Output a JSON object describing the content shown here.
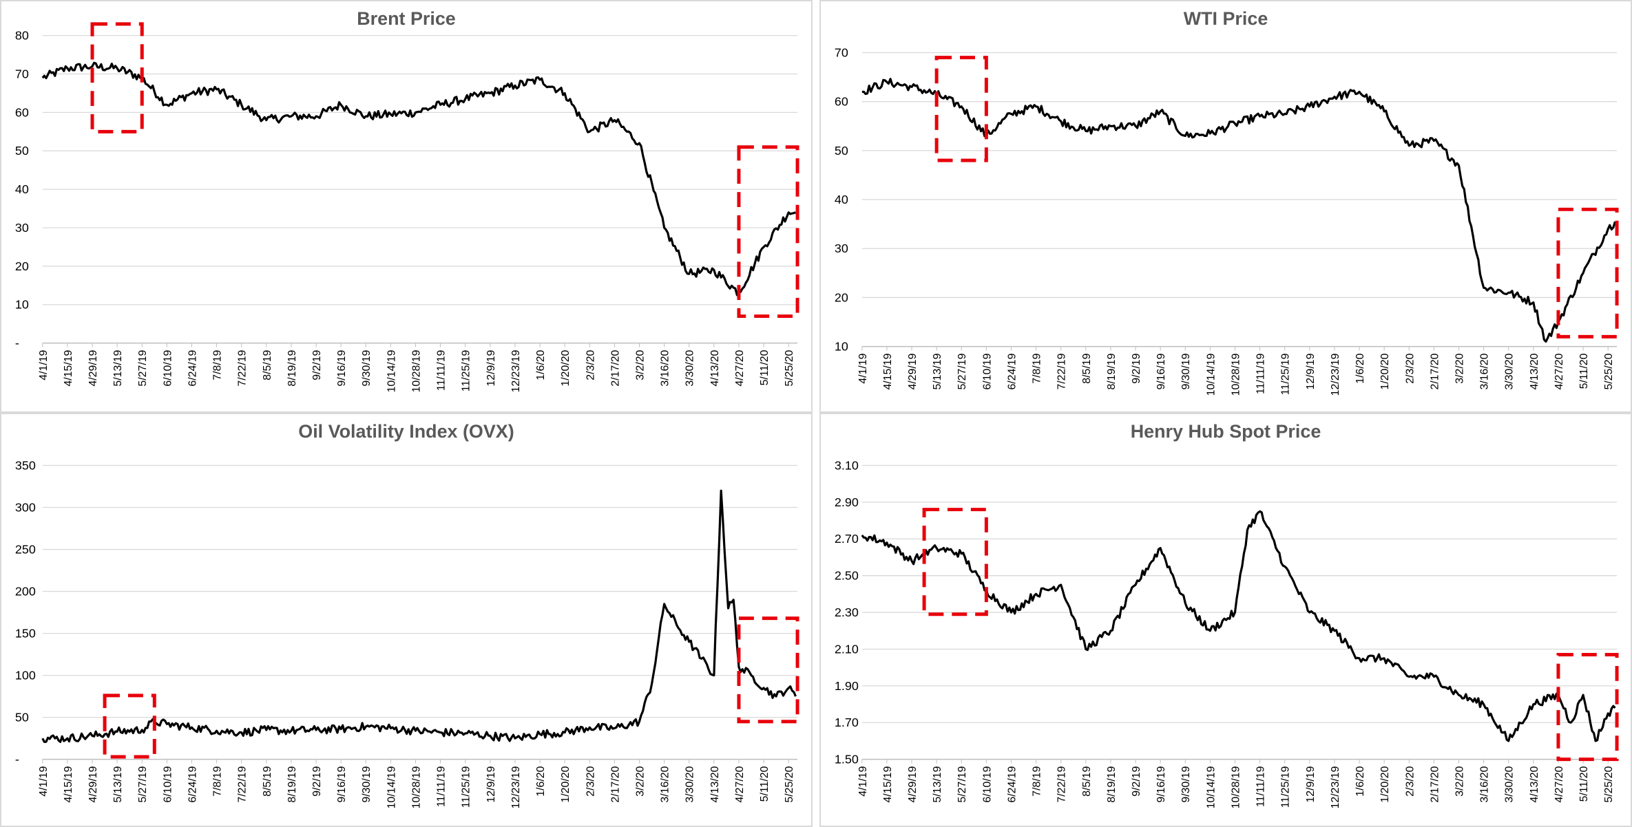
{
  "chart_data": [
    {
      "type": "line",
      "title": "Brent Price",
      "x_ticks": [
        "4/1/19",
        "4/15/19",
        "4/29/19",
        "5/13/19",
        "5/27/19",
        "6/10/19",
        "6/24/19",
        "7/8/19",
        "7/22/19",
        "8/5/19",
        "8/19/19",
        "9/2/19",
        "9/16/19",
        "9/30/19",
        "10/14/19",
        "10/28/19",
        "11/11/19",
        "11/25/19",
        "12/9/19",
        "12/23/19",
        "1/6/20",
        "1/20/20",
        "2/3/20",
        "2/17/20",
        "3/2/20",
        "3/16/20",
        "3/30/20",
        "4/13/20",
        "4/27/20",
        "5/11/20",
        "5/25/20"
      ],
      "y_ticks": [
        "-",
        "10",
        "20",
        "30",
        "40",
        "50",
        "60",
        "70",
        "80"
      ],
      "ylim": [
        0,
        80
      ],
      "grid": true,
      "highlight_boxes": [
        {
          "x_range": [
            "4/29/19",
            "5/27/19"
          ],
          "y_range": [
            55,
            83
          ]
        },
        {
          "x_range": [
            "4/27/20",
            "5/30/20"
          ],
          "y_range": [
            7,
            51
          ]
        }
      ],
      "series": [
        {
          "x": [
            "2019-04-01",
            "2019-04-15",
            "2019-04-29",
            "2019-05-13",
            "2019-05-27",
            "2019-06-10",
            "2019-06-24",
            "2019-07-08",
            "2019-07-22",
            "2019-08-05",
            "2019-08-19",
            "2019-09-02",
            "2019-09-16",
            "2019-09-30",
            "2019-10-14",
            "2019-10-28",
            "2019-11-11",
            "2019-11-25",
            "2019-12-09",
            "2019-12-23",
            "2020-01-06",
            "2020-01-20",
            "2020-02-03",
            "2020-02-17",
            "2020-03-02",
            "2020-03-16",
            "2020-03-30",
            "2020-04-13",
            "2020-04-27",
            "2020-05-11",
            "2020-05-25",
            "2020-05-29"
          ],
          "values": [
            69,
            71.5,
            72,
            71.5,
            69,
            62,
            65,
            66,
            62,
            58,
            59,
            59,
            62,
            59,
            59.5,
            60,
            62,
            63.5,
            65,
            67,
            68.5,
            65,
            55,
            58,
            52,
            30,
            18,
            19,
            13,
            25,
            34,
            34
          ]
        }
      ]
    },
    {
      "type": "line",
      "title": "WTI Price",
      "x_ticks": [
        "4/1/19",
        "4/15/19",
        "4/29/19",
        "5/13/19",
        "5/27/19",
        "6/10/19",
        "6/24/19",
        "7/8/19",
        "7/22/19",
        "8/5/19",
        "8/19/19",
        "9/2/19",
        "9/16/19",
        "9/30/19",
        "10/14/19",
        "10/28/19",
        "11/11/19",
        "11/25/19",
        "12/9/19",
        "12/23/19",
        "1/6/20",
        "1/20/20",
        "2/3/20",
        "2/17/20",
        "3/2/20",
        "3/16/20",
        "3/30/20",
        "4/13/20",
        "4/27/20",
        "5/11/20",
        "5/25/20"
      ],
      "y_ticks": [
        "10",
        "20",
        "30",
        "40",
        "50",
        "60",
        "70"
      ],
      "ylim": [
        10,
        70
      ],
      "grid": true,
      "highlight_boxes": [
        {
          "x_range": [
            "5/13/19",
            "6/10/19"
          ],
          "y_range": [
            48,
            69
          ]
        },
        {
          "x_range": [
            "4/27/20",
            "5/30/20"
          ],
          "y_range": [
            12,
            38
          ]
        }
      ],
      "series": [
        {
          "x": [
            "2019-04-01",
            "2019-04-15",
            "2019-04-29",
            "2019-05-13",
            "2019-05-27",
            "2019-06-10",
            "2019-06-24",
            "2019-07-08",
            "2019-07-22",
            "2019-08-05",
            "2019-08-19",
            "2019-09-02",
            "2019-09-16",
            "2019-09-30",
            "2019-10-14",
            "2019-10-28",
            "2019-11-11",
            "2019-11-25",
            "2019-12-09",
            "2019-12-23",
            "2020-01-06",
            "2020-01-20",
            "2020-02-03",
            "2020-02-17",
            "2020-03-02",
            "2020-03-16",
            "2020-03-30",
            "2020-04-13",
            "2020-04-20",
            "2020-04-27",
            "2020-05-11",
            "2020-05-25",
            "2020-05-29"
          ],
          "values": [
            62,
            64,
            63,
            61.5,
            59,
            53,
            57.5,
            59,
            56,
            54,
            55,
            55,
            58,
            53,
            53.5,
            55.5,
            57,
            57.5,
            59,
            61,
            62,
            58,
            51,
            52,
            47,
            22,
            21,
            19,
            11,
            15,
            25,
            34,
            35.5
          ]
        }
      ]
    },
    {
      "type": "line",
      "title": "Oil Volatility Index (OVX)",
      "x_ticks": [
        "4/1/19",
        "4/15/19",
        "4/29/19",
        "5/13/19",
        "5/27/19",
        "6/10/19",
        "6/24/19",
        "7/8/19",
        "7/22/19",
        "8/5/19",
        "8/19/19",
        "9/2/19",
        "9/16/19",
        "9/30/19",
        "10/14/19",
        "10/28/19",
        "11/11/19",
        "11/25/19",
        "12/9/19",
        "12/23/19",
        "1/6/20",
        "1/20/20",
        "2/3/20",
        "2/17/20",
        "3/2/20",
        "3/16/20",
        "3/30/20",
        "4/13/20",
        "4/27/20",
        "5/11/20",
        "5/25/20"
      ],
      "y_ticks": [
        "-",
        "50",
        "100",
        "150",
        "200",
        "250",
        "300",
        "350"
      ],
      "ylim": [
        0,
        350
      ],
      "grid": true,
      "highlight_boxes": [
        {
          "x_range": [
            "5/6/19",
            "6/3/19"
          ],
          "y_range": [
            3,
            76
          ]
        },
        {
          "x_range": [
            "4/27/20",
            "5/30/20"
          ],
          "y_range": [
            45,
            168
          ]
        }
      ],
      "series": [
        {
          "x": [
            "2019-04-01",
            "2019-04-15",
            "2019-04-29",
            "2019-05-13",
            "2019-05-27",
            "2019-06-03",
            "2019-06-10",
            "2019-06-24",
            "2019-07-08",
            "2019-07-22",
            "2019-08-05",
            "2019-08-19",
            "2019-09-02",
            "2019-09-16",
            "2019-09-30",
            "2019-10-14",
            "2019-10-28",
            "2019-11-11",
            "2019-11-25",
            "2019-12-09",
            "2019-12-23",
            "2020-01-06",
            "2020-01-20",
            "2020-02-03",
            "2020-02-17",
            "2020-03-02",
            "2020-03-09",
            "2020-03-16",
            "2020-03-23",
            "2020-03-30",
            "2020-04-06",
            "2020-04-13",
            "2020-04-17",
            "2020-04-21",
            "2020-04-24",
            "2020-04-27",
            "2020-05-04",
            "2020-05-11",
            "2020-05-18",
            "2020-05-25",
            "2020-05-29"
          ],
          "values": [
            25,
            25,
            28,
            33,
            35,
            45,
            42,
            38,
            34,
            32,
            35,
            34,
            35,
            36,
            39,
            37,
            34,
            32,
            31,
            28,
            25,
            30,
            32,
            38,
            37,
            45,
            90,
            185,
            160,
            140,
            120,
            100,
            320,
            180,
            190,
            110,
            100,
            85,
            75,
            85,
            75
          ]
        }
      ]
    },
    {
      "type": "line",
      "title": "Henry Hub Spot Price",
      "x_ticks": [
        "4/1/19",
        "4/15/19",
        "4/29/19",
        "5/13/19",
        "5/27/19",
        "6/10/19",
        "6/24/19",
        "7/8/19",
        "7/22/19",
        "8/5/19",
        "8/19/19",
        "9/2/19",
        "9/16/19",
        "9/30/19",
        "10/14/19",
        "10/28/19",
        "11/11/19",
        "11/25/19",
        "12/9/19",
        "12/23/19",
        "1/6/20",
        "1/20/20",
        "2/3/20",
        "2/17/20",
        "3/2/20",
        "3/16/20",
        "3/30/20",
        "4/13/20",
        "4/27/20",
        "5/11/20",
        "5/25/20"
      ],
      "y_ticks": [
        "1.50",
        "1.70",
        "1.90",
        "2.10",
        "2.30",
        "2.50",
        "2.70",
        "2.90",
        "3.10"
      ],
      "ylim": [
        1.5,
        3.1
      ],
      "grid": true,
      "highlight_boxes": [
        {
          "x_range": [
            "5/6/19",
            "6/10/19"
          ],
          "y_range": [
            2.29,
            2.86
          ]
        },
        {
          "x_range": [
            "4/27/20",
            "5/30/20"
          ],
          "y_range": [
            1.5,
            2.07
          ]
        }
      ],
      "series": [
        {
          "x": [
            "2019-04-01",
            "2019-04-15",
            "2019-04-29",
            "2019-05-13",
            "2019-05-27",
            "2019-06-10",
            "2019-06-24",
            "2019-07-08",
            "2019-07-22",
            "2019-08-05",
            "2019-08-19",
            "2019-09-02",
            "2019-09-16",
            "2019-09-30",
            "2019-10-14",
            "2019-10-28",
            "2019-11-04",
            "2019-11-11",
            "2019-11-25",
            "2019-12-09",
            "2019-12-23",
            "2020-01-06",
            "2020-01-20",
            "2020-02-03",
            "2020-02-17",
            "2020-03-02",
            "2020-03-16",
            "2020-03-30",
            "2020-04-13",
            "2020-04-27",
            "2020-05-04",
            "2020-05-11",
            "2020-05-18",
            "2020-05-25",
            "2020-05-29"
          ],
          "values": [
            2.72,
            2.68,
            2.58,
            2.65,
            2.62,
            2.42,
            2.3,
            2.4,
            2.45,
            2.1,
            2.2,
            2.45,
            2.65,
            2.35,
            2.2,
            2.3,
            2.75,
            2.85,
            2.55,
            2.3,
            2.2,
            2.05,
            2.05,
            1.95,
            1.95,
            1.85,
            1.8,
            1.6,
            1.8,
            1.85,
            1.7,
            1.85,
            1.6,
            1.75,
            1.78
          ]
        }
      ]
    }
  ]
}
